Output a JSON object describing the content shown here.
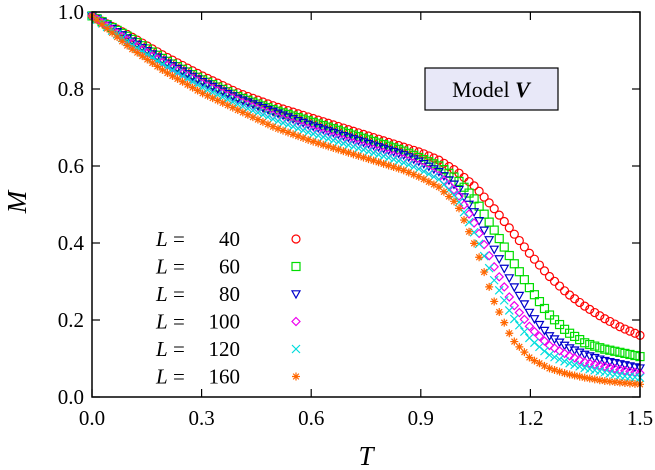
{
  "chart_data": {
    "type": "scatter",
    "xlabel": "T",
    "ylabel": "M",
    "xlim": [
      0.0,
      1.5
    ],
    "ylim": [
      0.0,
      1.0
    ],
    "xticks": [
      0.0,
      0.3,
      0.6,
      0.9,
      1.2,
      1.5
    ],
    "yticks": [
      0.0,
      0.2,
      0.4,
      0.6,
      0.8,
      1.0
    ],
    "xtick_labels": [
      "0.0",
      "0.3",
      "0.6",
      "0.9",
      "1.2",
      "1.5"
    ],
    "ytick_labels": [
      "0.0",
      "0.2",
      "0.4",
      "0.6",
      "0.8",
      "1.0"
    ],
    "grid": false,
    "legend_position": "bottom-left",
    "annotation": {
      "prefix": "Model ",
      "emph": "V"
    },
    "series": [
      {
        "name": "40",
        "legend_var": "L",
        "legend_eq": "=",
        "marker": "circle",
        "color": "#ff0000",
        "points": [
          [
            0.0,
            0.99
          ],
          [
            0.1,
            0.94
          ],
          [
            0.2,
            0.885
          ],
          [
            0.3,
            0.835
          ],
          [
            0.4,
            0.79
          ],
          [
            0.5,
            0.755
          ],
          [
            0.6,
            0.725
          ],
          [
            0.7,
            0.695
          ],
          [
            0.8,
            0.665
          ],
          [
            0.85,
            0.65
          ],
          [
            0.9,
            0.635
          ],
          [
            0.95,
            0.615
          ],
          [
            1.0,
            0.585
          ],
          [
            1.05,
            0.545
          ],
          [
            1.1,
            0.49
          ],
          [
            1.15,
            0.43
          ],
          [
            1.2,
            0.37
          ],
          [
            1.25,
            0.315
          ],
          [
            1.3,
            0.27
          ],
          [
            1.35,
            0.235
          ],
          [
            1.4,
            0.205
          ],
          [
            1.45,
            0.18
          ],
          [
            1.5,
            0.16
          ]
        ]
      },
      {
        "name": "60",
        "legend_var": "L",
        "legend_eq": "=",
        "marker": "square",
        "color": "#00dd00",
        "points": [
          [
            0.0,
            0.99
          ],
          [
            0.1,
            0.935
          ],
          [
            0.2,
            0.875
          ],
          [
            0.3,
            0.825
          ],
          [
            0.4,
            0.78
          ],
          [
            0.5,
            0.745
          ],
          [
            0.6,
            0.715
          ],
          [
            0.7,
            0.685
          ],
          [
            0.8,
            0.655
          ],
          [
            0.85,
            0.64
          ],
          [
            0.9,
            0.62
          ],
          [
            0.95,
            0.6
          ],
          [
            1.0,
            0.565
          ],
          [
            1.05,
            0.51
          ],
          [
            1.1,
            0.435
          ],
          [
            1.15,
            0.355
          ],
          [
            1.2,
            0.28
          ],
          [
            1.25,
            0.215
          ],
          [
            1.3,
            0.17
          ],
          [
            1.35,
            0.14
          ],
          [
            1.4,
            0.125
          ],
          [
            1.45,
            0.115
          ],
          [
            1.5,
            0.105
          ]
        ]
      },
      {
        "name": "80",
        "legend_var": "L",
        "legend_eq": "=",
        "marker": "triangle-down",
        "color": "#0000cc",
        "points": [
          [
            0.0,
            0.99
          ],
          [
            0.1,
            0.93
          ],
          [
            0.2,
            0.87
          ],
          [
            0.3,
            0.82
          ],
          [
            0.4,
            0.775
          ],
          [
            0.5,
            0.74
          ],
          [
            0.6,
            0.705
          ],
          [
            0.7,
            0.675
          ],
          [
            0.8,
            0.645
          ],
          [
            0.85,
            0.63
          ],
          [
            0.9,
            0.61
          ],
          [
            0.95,
            0.585
          ],
          [
            1.0,
            0.545
          ],
          [
            1.05,
            0.475
          ],
          [
            1.1,
            0.385
          ],
          [
            1.15,
            0.295
          ],
          [
            1.2,
            0.215
          ],
          [
            1.25,
            0.16
          ],
          [
            1.3,
            0.13
          ],
          [
            1.35,
            0.11
          ],
          [
            1.4,
            0.095
          ],
          [
            1.45,
            0.085
          ],
          [
            1.5,
            0.075
          ]
        ]
      },
      {
        "name": "100",
        "legend_var": "L",
        "legend_eq": "=",
        "marker": "diamond",
        "color": "#ee00ee",
        "points": [
          [
            0.0,
            0.99
          ],
          [
            0.1,
            0.925
          ],
          [
            0.2,
            0.865
          ],
          [
            0.3,
            0.815
          ],
          [
            0.4,
            0.77
          ],
          [
            0.5,
            0.73
          ],
          [
            0.6,
            0.695
          ],
          [
            0.7,
            0.665
          ],
          [
            0.8,
            0.635
          ],
          [
            0.85,
            0.62
          ],
          [
            0.9,
            0.6
          ],
          [
            0.95,
            0.575
          ],
          [
            1.0,
            0.53
          ],
          [
            1.05,
            0.445
          ],
          [
            1.1,
            0.34
          ],
          [
            1.15,
            0.245
          ],
          [
            1.2,
            0.18
          ],
          [
            1.25,
            0.135
          ],
          [
            1.3,
            0.11
          ],
          [
            1.35,
            0.09
          ],
          [
            1.4,
            0.08
          ],
          [
            1.45,
            0.07
          ],
          [
            1.5,
            0.062
          ]
        ]
      },
      {
        "name": "120",
        "legend_var": "L",
        "legend_eq": "=",
        "marker": "cross",
        "color": "#00dddd",
        "points": [
          [
            0.0,
            0.99
          ],
          [
            0.1,
            0.92
          ],
          [
            0.2,
            0.86
          ],
          [
            0.3,
            0.805
          ],
          [
            0.4,
            0.76
          ],
          [
            0.5,
            0.72
          ],
          [
            0.6,
            0.685
          ],
          [
            0.7,
            0.655
          ],
          [
            0.8,
            0.625
          ],
          [
            0.85,
            0.61
          ],
          [
            0.9,
            0.59
          ],
          [
            0.95,
            0.565
          ],
          [
            1.0,
            0.515
          ],
          [
            1.05,
            0.42
          ],
          [
            1.1,
            0.305
          ],
          [
            1.15,
            0.21
          ],
          [
            1.2,
            0.15
          ],
          [
            1.25,
            0.11
          ],
          [
            1.3,
            0.09
          ],
          [
            1.35,
            0.075
          ],
          [
            1.4,
            0.065
          ],
          [
            1.45,
            0.055
          ],
          [
            1.5,
            0.05
          ]
        ]
      },
      {
        "name": "160",
        "legend_var": "L",
        "legend_eq": "=",
        "marker": "star",
        "color": "#ff6600",
        "points": [
          [
            0.0,
            0.99
          ],
          [
            0.1,
            0.91
          ],
          [
            0.2,
            0.845
          ],
          [
            0.3,
            0.79
          ],
          [
            0.4,
            0.745
          ],
          [
            0.5,
            0.7
          ],
          [
            0.6,
            0.665
          ],
          [
            0.7,
            0.635
          ],
          [
            0.8,
            0.605
          ],
          [
            0.85,
            0.59
          ],
          [
            0.9,
            0.57
          ],
          [
            0.95,
            0.545
          ],
          [
            1.0,
            0.5
          ],
          [
            1.05,
            0.39
          ],
          [
            1.1,
            0.25
          ],
          [
            1.15,
            0.15
          ],
          [
            1.2,
            0.1
          ],
          [
            1.25,
            0.075
          ],
          [
            1.3,
            0.06
          ],
          [
            1.35,
            0.05
          ],
          [
            1.4,
            0.042
          ],
          [
            1.45,
            0.037
          ],
          [
            1.5,
            0.033
          ]
        ]
      }
    ]
  }
}
